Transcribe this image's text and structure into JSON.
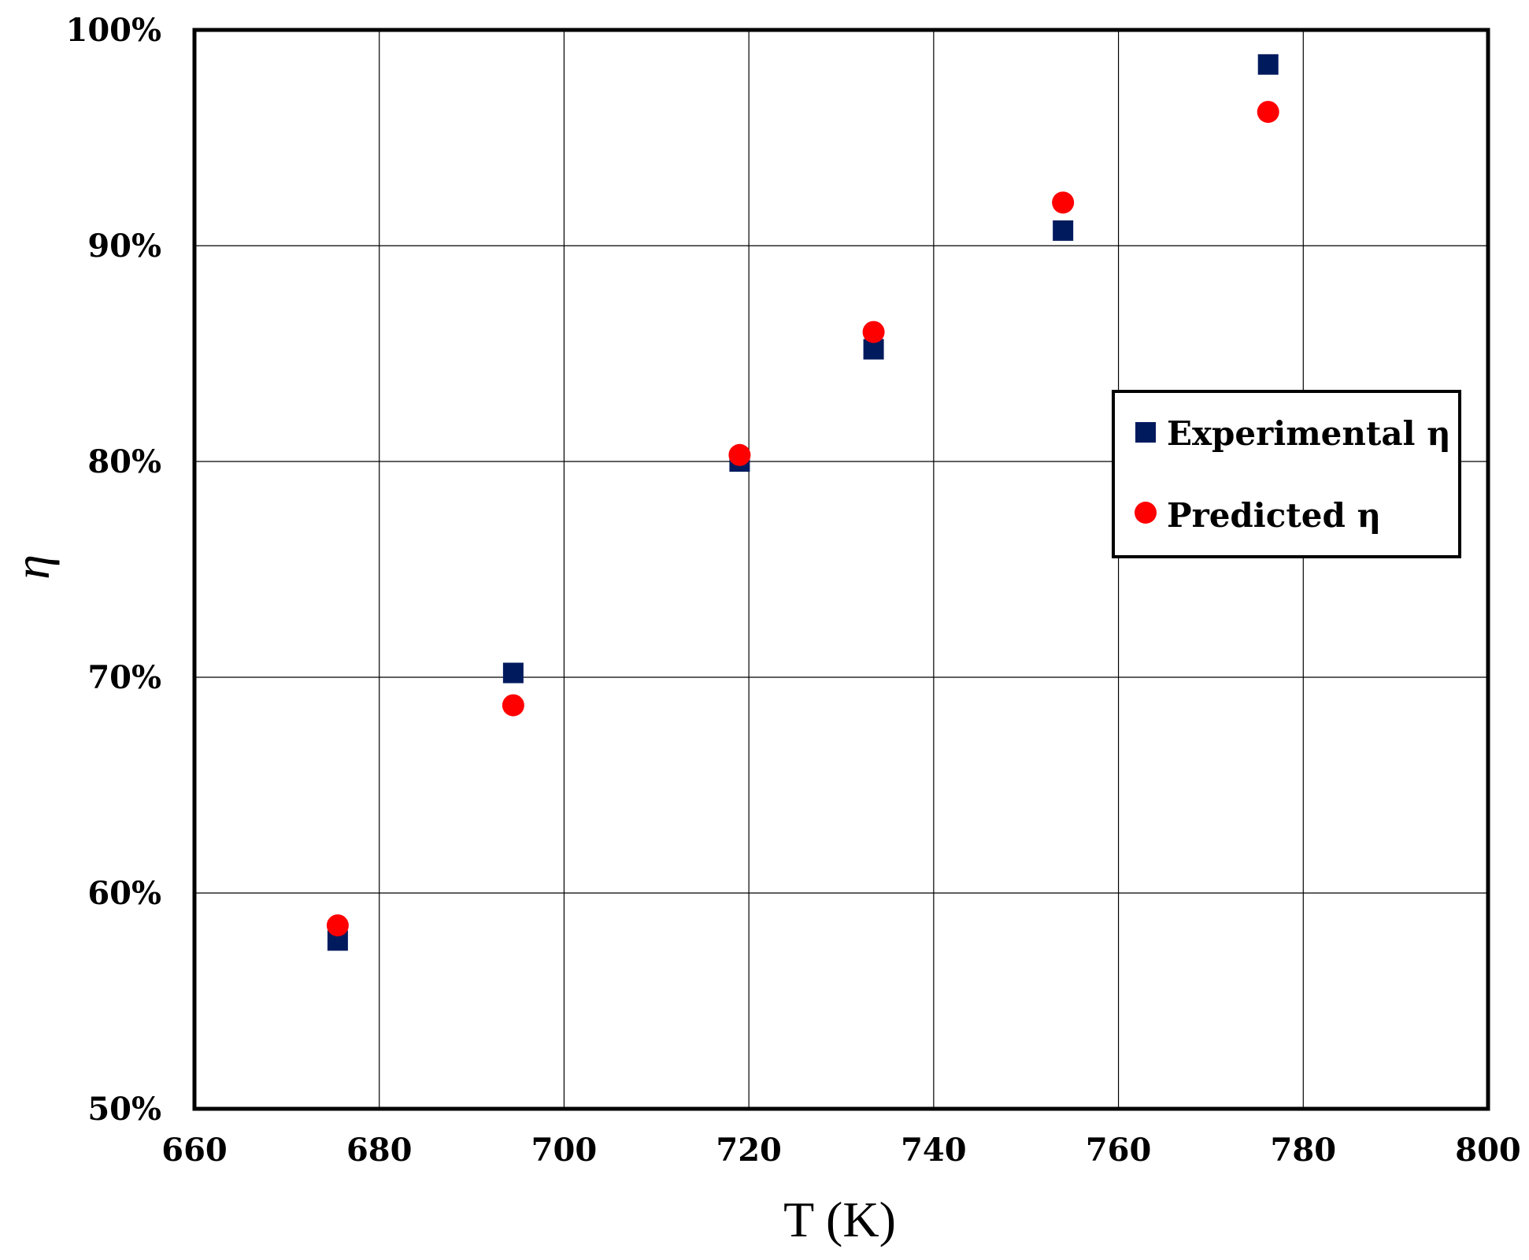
{
  "chart_data": {
    "type": "scatter",
    "title": "",
    "xlabel": "T (K)",
    "ylabel": "η",
    "xlim": [
      660,
      800
    ],
    "ylim": [
      50,
      100
    ],
    "x_ticks": [
      660,
      680,
      700,
      720,
      740,
      760,
      780,
      800
    ],
    "y_ticks": [
      50,
      60,
      70,
      80,
      90,
      100
    ],
    "y_tick_labels": [
      "50%",
      "60%",
      "70%",
      "80%",
      "90%",
      "100%"
    ],
    "grid": true,
    "legend_position": "right",
    "series": [
      {
        "name": "Experimental η",
        "marker": "square",
        "color": "#001a5e",
        "x": [
          675.5,
          694.5,
          719.0,
          733.5,
          754.0,
          776.2
        ],
        "y": [
          57.8,
          70.2,
          80.0,
          85.2,
          90.7,
          98.4
        ]
      },
      {
        "name": "Predicted η",
        "marker": "circle",
        "color": "#ff0000",
        "x": [
          675.5,
          694.5,
          719.0,
          733.5,
          754.0,
          776.2
        ],
        "y": [
          58.5,
          68.7,
          80.3,
          86.0,
          92.0,
          96.2
        ]
      }
    ]
  }
}
